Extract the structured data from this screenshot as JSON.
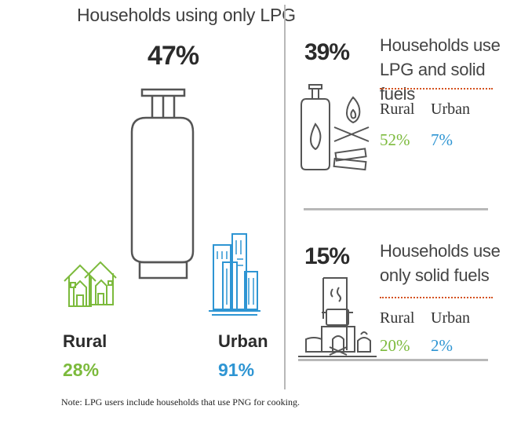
{
  "left": {
    "title": "Households using only LPG",
    "percent": "47%",
    "rural": {
      "label": "Rural",
      "value": "28%"
    },
    "urban": {
      "label": "Urban",
      "value": "91%"
    },
    "note": "Note: LPG users include households that use PNG for cooking."
  },
  "right_top": {
    "percent": "39%",
    "title_line1": "Households use",
    "title_line2": "LPG and solid fuels",
    "rural": {
      "label": "Rural",
      "value": "52%"
    },
    "urban": {
      "label": "Urban",
      "value": "7%"
    }
  },
  "right_bottom": {
    "percent": "15%",
    "title_line1": "Households use",
    "title_line2": "only solid fuels",
    "rural": {
      "label": "Rural",
      "value": "20%"
    },
    "urban": {
      "label": "Urban",
      "value": "2%"
    }
  },
  "colors": {
    "rural_green": "#7cba3c",
    "urban_blue": "#2e95d3",
    "accent_orange": "#d4521f",
    "icon_gray": "#555555"
  },
  "icons": [
    "lpg-cylinder-icon",
    "rural-houses-icon",
    "urban-buildings-icon",
    "cylinder-and-fire-icon",
    "chulha-cooking-icon"
  ]
}
